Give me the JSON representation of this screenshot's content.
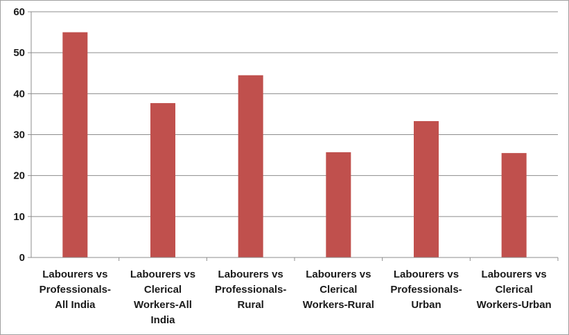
{
  "chart_data": {
    "type": "bar",
    "title": "",
    "xlabel": "",
    "ylabel": "",
    "ylim": [
      0,
      60
    ],
    "yticks": [
      0,
      10,
      20,
      30,
      40,
      50,
      60
    ],
    "grid": true,
    "legend": "none",
    "bar_color": "#c0504d",
    "categories": [
      [
        "Labourers vs",
        "Professionals-",
        "All India"
      ],
      [
        "Labourers vs",
        "Clerical",
        "Workers-All",
        "India"
      ],
      [
        "Labourers vs",
        "Professionals-",
        "Rural"
      ],
      [
        "Labourers vs",
        "Clerical",
        "Workers-Rural"
      ],
      [
        "Labourers vs",
        "Professionals-",
        "Urban"
      ],
      [
        "Labourers vs",
        "Clerical",
        "Workers-Urban"
      ]
    ],
    "values": [
      55.0,
      37.7,
      44.5,
      25.7,
      33.3,
      25.5
    ]
  }
}
